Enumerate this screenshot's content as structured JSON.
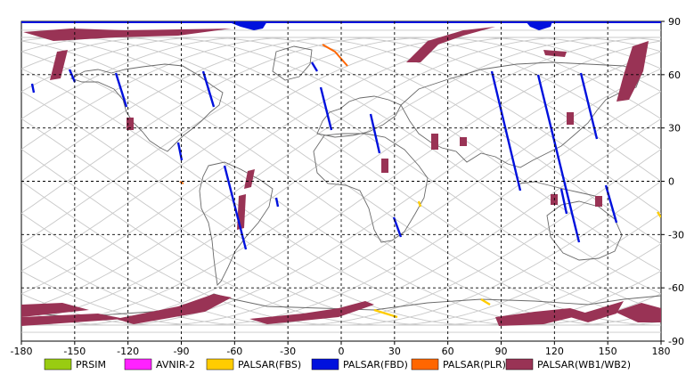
{
  "map": {
    "x_ticks": [
      "-180",
      "-150",
      "-120",
      "-90",
      "-60",
      "-30",
      "0",
      "30",
      "60",
      "90",
      "120",
      "150",
      "180"
    ],
    "y_ticks": [
      "90",
      "60",
      "30",
      "0",
      "-30",
      "-60",
      "-90"
    ],
    "grid": true
  },
  "legend": [
    {
      "label": "PRSIM",
      "color": "#99cc11"
    },
    {
      "label": "AVNIR-2",
      "color": "#ff22ff"
    },
    {
      "label": "PALSAR(FBS)",
      "color": "#ffcc00"
    },
    {
      "label": "PALSAR(FBD)",
      "color": "#0011dd"
    },
    {
      "label": "PALSAR(PLR)",
      "color": "#ff6600"
    },
    {
      "label": "PALSAR(WB1/WB2)",
      "color": "#993355"
    }
  ]
}
